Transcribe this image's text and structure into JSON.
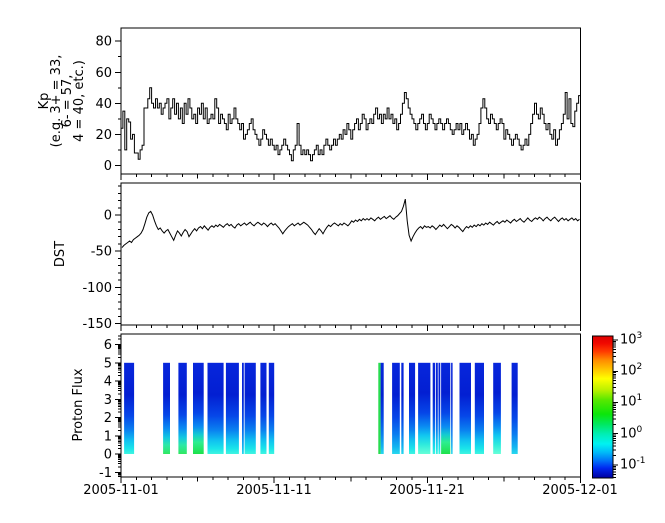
{
  "chart_data": {
    "type": "multi-panel-timeseries",
    "title": "",
    "x_axis": {
      "labels": [
        "2005-11-01",
        "2005-11-11",
        "2005-11-21",
        "2005-12-01"
      ],
      "label_days": [
        0,
        10,
        20,
        30
      ],
      "span_days": 30,
      "minor_tick_every_days": 1,
      "mid_tick_every_days": 5
    },
    "panels": [
      {
        "name": "kp",
        "type": "step-line",
        "ylabel_lines": [
          "Kp",
          "(e.g. 3+ = 33,",
          "6- = 57,",
          "4 = 40, etc.)"
        ],
        "ytick_values": [
          0,
          20,
          40,
          60,
          80
        ],
        "ytick_labels": [
          "0",
          "20",
          "40",
          "60",
          "80"
        ],
        "ylim": [
          -5.5,
          88.5
        ],
        "minor_step": 10,
        "values_per_day": 8,
        "line_color": "#000000",
        "values": [
          24,
          35,
          10,
          30,
          28,
          17,
          20,
          8,
          8,
          4,
          10,
          13,
          37,
          37,
          43,
          50,
          40,
          37,
          43,
          37,
          40,
          33,
          37,
          40,
          43,
          30,
          37,
          43,
          33,
          40,
          30,
          37,
          27,
          40,
          33,
          43,
          37,
          30,
          33,
          27,
          37,
          33,
          40,
          30,
          37,
          27,
          30,
          33,
          30,
          43,
          37,
          27,
          33,
          30,
          27,
          23,
          33,
          27,
          30,
          37,
          30,
          27,
          23,
          27,
          17,
          20,
          23,
          27,
          30,
          23,
          20,
          17,
          13,
          17,
          23,
          20,
          17,
          13,
          17,
          13,
          10,
          13,
          7,
          10,
          13,
          17,
          13,
          10,
          7,
          3,
          10,
          13,
          27,
          13,
          7,
          10,
          7,
          10,
          7,
          3,
          7,
          10,
          13,
          7,
          10,
          7,
          13,
          17,
          13,
          10,
          13,
          17,
          13,
          17,
          20,
          17,
          23,
          20,
          27,
          23,
          17,
          23,
          27,
          30,
          23,
          27,
          33,
          30,
          23,
          27,
          30,
          27,
          33,
          37,
          30,
          33,
          27,
          33,
          30,
          37,
          30,
          33,
          27,
          30,
          23,
          27,
          33,
          40,
          47,
          43,
          37,
          33,
          30,
          27,
          23,
          27,
          30,
          33,
          27,
          23,
          27,
          33,
          30,
          27,
          23,
          27,
          30,
          27,
          23,
          27,
          30,
          27,
          23,
          20,
          23,
          27,
          23,
          27,
          20,
          23,
          27,
          23,
          17,
          20,
          13,
          17,
          20,
          27,
          37,
          43,
          37,
          30,
          27,
          33,
          30,
          27,
          23,
          27,
          30,
          27,
          17,
          23,
          20,
          17,
          13,
          17,
          20,
          17,
          13,
          10,
          13,
          17,
          13,
          20,
          27,
          33,
          40,
          33,
          30,
          37,
          33,
          27,
          23,
          27,
          20,
          17,
          23,
          13,
          17,
          23,
          27,
          33,
          47,
          30,
          43,
          27,
          25,
          35,
          40,
          45
        ]
      },
      {
        "name": "dst",
        "type": "line",
        "ylabel": "DST",
        "ytick_values": [
          0,
          -50,
          -100,
          -150
        ],
        "ytick_labels": [
          "0",
          "-50",
          "-100",
          "-150"
        ],
        "ylim": [
          -152,
          44.2
        ],
        "minor_step": 10,
        "values_per_day": 8,
        "line_color": "#000000",
        "values": [
          -45,
          -42,
          -40,
          -38,
          -36,
          -38,
          -34,
          -32,
          -30,
          -28,
          -25,
          -20,
          -12,
          -3,
          3,
          5,
          0,
          -8,
          -15,
          -20,
          -18,
          -22,
          -25,
          -22,
          -20,
          -25,
          -30,
          -35,
          -28,
          -22,
          -25,
          -29,
          -24,
          -20,
          -23,
          -30,
          -26,
          -22,
          -19,
          -22,
          -18,
          -16,
          -19,
          -15,
          -18,
          -21,
          -17,
          -15,
          -17,
          -14,
          -16,
          -13,
          -15,
          -17,
          -14,
          -12,
          -15,
          -13,
          -16,
          -18,
          -14,
          -12,
          -15,
          -13,
          -11,
          -14,
          -12,
          -10,
          -13,
          -15,
          -12,
          -10,
          -12,
          -14,
          -11,
          -13,
          -16,
          -13,
          -11,
          -14,
          -12,
          -15,
          -18,
          -22,
          -26,
          -22,
          -19,
          -16,
          -14,
          -12,
          -15,
          -13,
          -11,
          -14,
          -12,
          -10,
          -12,
          -14,
          -17,
          -20,
          -24,
          -27,
          -23,
          -19,
          -22,
          -26,
          -21,
          -17,
          -14,
          -16,
          -13,
          -11,
          -13,
          -15,
          -12,
          -14,
          -11,
          -13,
          -15,
          -12,
          -8,
          -10,
          -7,
          -9,
          -6,
          -8,
          -5,
          -7,
          -5,
          -7,
          -4,
          -6,
          -8,
          -5,
          -3,
          -6,
          -4,
          -2,
          -5,
          -3,
          -1,
          -4,
          -6,
          -3,
          -1,
          2,
          5,
          12,
          22,
          -8,
          -28,
          -36,
          -30,
          -25,
          -21,
          -18,
          -16,
          -19,
          -15,
          -17,
          -16,
          -18,
          -15,
          -17,
          -20,
          -17,
          -14,
          -16,
          -13,
          -16,
          -19,
          -16,
          -13,
          -15,
          -18,
          -15,
          -17,
          -20,
          -23,
          -19,
          -16,
          -18,
          -15,
          -17,
          -14,
          -16,
          -13,
          -15,
          -12,
          -14,
          -11,
          -13,
          -10,
          -12,
          -14,
          -11,
          -9,
          -12,
          -10,
          -8,
          -10,
          -7,
          -9,
          -11,
          -8,
          -6,
          -9,
          -7,
          -5,
          -8,
          -10,
          -7,
          -4,
          -7,
          -9,
          -6,
          -4,
          -6,
          -3,
          -5,
          -8,
          -5,
          -3,
          -6,
          -8,
          -5,
          -3,
          -6,
          -9,
          -6,
          -4,
          -7,
          -5,
          -8,
          -6,
          -4,
          -7,
          -5,
          -8,
          -6
        ]
      },
      {
        "name": "proton_flux",
        "type": "bar-spectrogram",
        "ylabel": "Proton Flux",
        "ytick_values": [
          6,
          5,
          4,
          3,
          2,
          1,
          0,
          -1
        ],
        "ytick_labels": [
          "6",
          "5",
          "4",
          "3",
          "2",
          "1",
          "0",
          "-1"
        ],
        "ylim": [
          -1.26,
          6.58
        ],
        "minor": "log",
        "bar_value_range": [
          0,
          5
        ],
        "bars": [
          [
            0.2,
            0.85,
            "cyan"
          ],
          [
            2.75,
            3.2,
            "green"
          ],
          [
            3.75,
            4.3,
            "green"
          ],
          [
            4.7,
            5.4,
            "green2"
          ],
          [
            5.65,
            6.7,
            "cyan"
          ],
          [
            6.85,
            7.7,
            "cyan"
          ],
          [
            7.9,
            8.02,
            "blue"
          ],
          [
            8.07,
            8.8,
            "cyan"
          ],
          [
            9.1,
            9.5,
            "cyan"
          ],
          [
            9.65,
            10.0,
            "cyan"
          ],
          [
            16.8,
            16.95,
            "greenline"
          ],
          [
            16.95,
            17.15,
            "blue"
          ],
          [
            17.7,
            18.2,
            "blue"
          ],
          [
            18.3,
            18.45,
            "blue"
          ],
          [
            18.8,
            19.2,
            "cyan"
          ],
          [
            19.4,
            20.2,
            "cyan2"
          ],
          [
            20.35,
            20.5,
            "cyan"
          ],
          [
            20.55,
            20.68,
            "cyan"
          ],
          [
            20.73,
            20.85,
            "cyan"
          ],
          [
            20.9,
            21.5,
            "green2"
          ],
          [
            21.55,
            21.65,
            "blue"
          ],
          [
            22.1,
            22.85,
            "cyan"
          ],
          [
            23.1,
            23.7,
            "cyan"
          ],
          [
            24.3,
            24.8,
            "cyan2"
          ],
          [
            25.5,
            25.9,
            "blue"
          ]
        ],
        "bar_styles": {
          "blue": [
            [
              0,
              "#0726dc"
            ],
            [
              0.35,
              "#031fd2"
            ],
            [
              0.6,
              "#0646e8"
            ],
            [
              0.78,
              "#0a7cf0"
            ],
            [
              0.92,
              "#12b4f0"
            ],
            [
              1,
              "#28d8ee"
            ]
          ],
          "cyan": [
            [
              0,
              "#0726dc"
            ],
            [
              0.35,
              "#031fd2"
            ],
            [
              0.58,
              "#0646e8"
            ],
            [
              0.74,
              "#0a82f0"
            ],
            [
              0.85,
              "#10c0f0"
            ],
            [
              0.94,
              "#1ae4ea"
            ],
            [
              1,
              "#40f5e0"
            ]
          ],
          "cyan2": [
            [
              0,
              "#0726dc"
            ],
            [
              0.33,
              "#031fd2"
            ],
            [
              0.55,
              "#0646e8"
            ],
            [
              0.7,
              "#0a8cf2"
            ],
            [
              0.8,
              "#12c8f0"
            ],
            [
              0.9,
              "#30ecdc"
            ],
            [
              1,
              "#66ffd8"
            ]
          ],
          "green": [
            [
              0,
              "#0726dc"
            ],
            [
              0.35,
              "#031fd2"
            ],
            [
              0.57,
              "#0646e8"
            ],
            [
              0.72,
              "#0a8cf2"
            ],
            [
              0.82,
              "#12c8e0"
            ],
            [
              0.9,
              "#2ee8a8"
            ],
            [
              1,
              "#30e860"
            ]
          ],
          "green2": [
            [
              0,
              "#0726dc"
            ],
            [
              0.33,
              "#031fd2"
            ],
            [
              0.55,
              "#0646e8"
            ],
            [
              0.7,
              "#0a8cf2"
            ],
            [
              0.79,
              "#14ccd0"
            ],
            [
              0.87,
              "#2cee90"
            ],
            [
              1,
              "#1ee24a"
            ]
          ],
          "greenline": [
            [
              0,
              "#28dc50"
            ],
            [
              1,
              "#28dc50"
            ]
          ]
        }
      }
    ],
    "colorbar": {
      "scale": "log",
      "exp_range": [
        -1.42,
        3.13
      ],
      "tick_exponents": [
        3,
        2,
        1,
        0,
        -1
      ],
      "tick_labels": [
        {
          "base": "10",
          "exp": "3"
        },
        {
          "base": "10",
          "exp": "2"
        },
        {
          "base": "10",
          "exp": "1"
        },
        {
          "base": "10",
          "exp": "0"
        },
        {
          "base": "10",
          "exp": "-1"
        }
      ],
      "gradient_top_to_bottom": [
        [
          0,
          "#dd0000"
        ],
        [
          0.05,
          "#f00800"
        ],
        [
          0.11,
          "#ff3c00"
        ],
        [
          0.17,
          "#ff8c00"
        ],
        [
          0.25,
          "#ffd200"
        ],
        [
          0.3,
          "#ffff00"
        ],
        [
          0.38,
          "#baf100"
        ],
        [
          0.45,
          "#58e800"
        ],
        [
          0.55,
          "#0ce60a"
        ],
        [
          0.62,
          "#00e85e"
        ],
        [
          0.69,
          "#00eeb4"
        ],
        [
          0.76,
          "#00f2f2"
        ],
        [
          0.82,
          "#00baf8"
        ],
        [
          0.88,
          "#0070f8"
        ],
        [
          0.93,
          "#0028f0"
        ],
        [
          1,
          "#0000a0"
        ]
      ]
    },
    "layout_hints": {
      "background": "#ffffff",
      "frame_color": "#000000",
      "grid": false,
      "legend": false
    }
  }
}
